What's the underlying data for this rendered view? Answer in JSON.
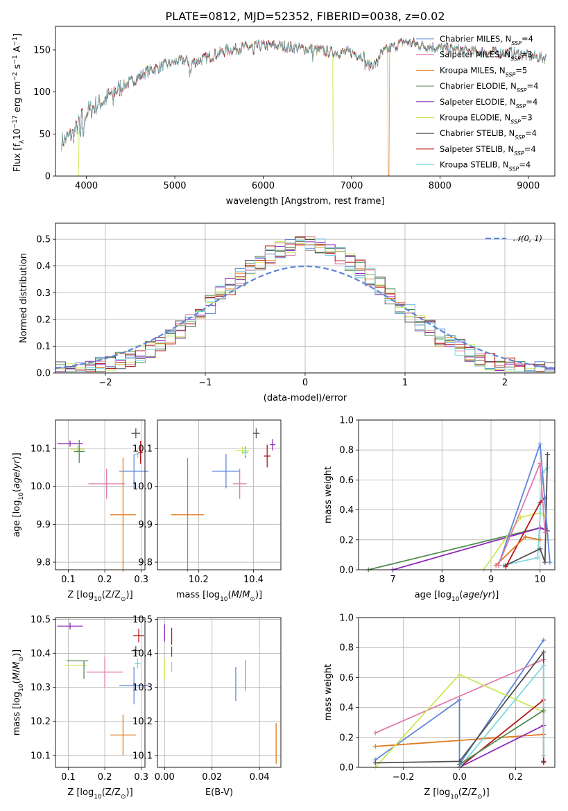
{
  "title": "PLATE=0812, MJD=52352, FIBERID=0038, z=0.02",
  "colors": {
    "blue": "#5b86d8",
    "pink": "#e07aac",
    "orange": "#e07b1f",
    "green": "#4f8a4f",
    "purple": "#8e2ab8",
    "yellow": "#cbe856",
    "gray": "#505050",
    "red": "#b31515",
    "cyan": "#7dd8e0",
    "grid": "#b0b0b0"
  },
  "chart_data": [
    {
      "type": "line",
      "xlabel": "wavelength [Angstrom, rest frame]",
      "ylabel": "Flux [f_λ 10^-17 erg cm^-2 s^-1 A^-1]",
      "xlim": [
        3650,
        9300
      ],
      "ylim": [
        0,
        178
      ],
      "xticks": [
        4000,
        5000,
        6000,
        7000,
        8000,
        9000
      ],
      "yticks": [
        0,
        50,
        100,
        150
      ],
      "legend": "top-right",
      "continuum": [
        [
          3700,
          40
        ],
        [
          3850,
          50
        ],
        [
          3950,
          70
        ],
        [
          4050,
          80
        ],
        [
          4200,
          90
        ],
        [
          4300,
          100
        ],
        [
          4500,
          112
        ],
        [
          4700,
          125
        ],
        [
          4900,
          132
        ],
        [
          5100,
          138
        ],
        [
          5200,
          135
        ],
        [
          5400,
          142
        ],
        [
          5600,
          150
        ],
        [
          5800,
          153
        ],
        [
          6000,
          155
        ],
        [
          6200,
          155
        ],
        [
          6400,
          152
        ],
        [
          6600,
          150
        ],
        [
          6800,
          147
        ],
        [
          7000,
          147
        ],
        [
          7200,
          140
        ],
        [
          7300,
          142
        ],
        [
          7400,
          150
        ],
        [
          7600,
          160
        ],
        [
          7800,
          155
        ],
        [
          8000,
          152
        ],
        [
          8200,
          150
        ],
        [
          8500,
          147
        ],
        [
          8800,
          147
        ],
        [
          9000,
          143
        ],
        [
          9200,
          140
        ]
      ],
      "series": [
        {
          "name": "Chabrier MILES",
          "nssp": "4",
          "color": "blue"
        },
        {
          "name": "Salpeter MILES",
          "nssp": "3",
          "color": "pink"
        },
        {
          "name": "Kroupa MILES",
          "nssp": "5",
          "color": "orange"
        },
        {
          "name": "Chabrier ELODIE",
          "nssp": "4",
          "color": "green"
        },
        {
          "name": "Salpeter ELODIE",
          "nssp": "4",
          "color": "purple"
        },
        {
          "name": "Kroupa ELODIE",
          "nssp": "3",
          "color": "yellow"
        },
        {
          "name": "Chabrier STELIB",
          "nssp": "4",
          "color": "gray"
        },
        {
          "name": "Salpeter STELIB",
          "nssp": "4",
          "color": "red"
        },
        {
          "name": "Kroupa STELIB",
          "nssp": "4",
          "color": "cyan"
        }
      ],
      "dropouts": [
        {
          "x": 3910,
          "color": "yellow"
        },
        {
          "x": 6790,
          "color": "yellow"
        },
        {
          "x": 7420,
          "color": "orange"
        }
      ]
    },
    {
      "type": "line",
      "xlabel": "(data-model)/error",
      "ylabel": "Normed distribution",
      "xlim": [
        -2.5,
        2.5
      ],
      "ylim": [
        0,
        0.56
      ],
      "xticks": [
        -2,
        -1,
        0,
        1,
        2
      ],
      "yticks": [
        0.0,
        0.1,
        0.2,
        0.3,
        0.4,
        0.5
      ],
      "grid": true,
      "legend": "top-right",
      "gaussian_label": "N(0,1)",
      "gaussian_color": "blue",
      "histogram_series": [
        "blue",
        "pink",
        "orange",
        "green",
        "purple",
        "yellow",
        "gray",
        "red",
        "cyan"
      ]
    },
    {
      "type": "scatter",
      "xlabel": "Z [log10(Z/Z⊙)]",
      "ylabel": "age [log10(age/yr)]",
      "xlim": [
        0.065,
        0.31
      ],
      "ylim": [
        9.78,
        10.175
      ],
      "xticks": [
        0.1,
        0.2,
        0.3
      ],
      "yticks": [
        9.8,
        9.9,
        10.0,
        10.1
      ],
      "grid": true,
      "points": [
        {
          "color": "purple",
          "x": 0.105,
          "y": 10.113,
          "xerr": 0.035,
          "yerr": 0.008
        },
        {
          "color": "yellow",
          "x": 0.125,
          "y": 10.098,
          "xerr": 0.02,
          "yerr": 0.01
        },
        {
          "color": "green",
          "x": 0.13,
          "y": 10.092,
          "xerr": 0.015,
          "yerr": 0.03
        },
        {
          "color": "gray",
          "x": 0.285,
          "y": 10.14,
          "xerr": 0.012,
          "yerr": 0.013
        },
        {
          "color": "cyan",
          "x": 0.29,
          "y": 10.085,
          "xerr": 0.008,
          "yerr": 0.01
        },
        {
          "color": "red",
          "x": 0.298,
          "y": 10.09,
          "xerr": 0.006,
          "yerr": 0.03
        },
        {
          "color": "blue",
          "x": 0.28,
          "y": 10.04,
          "xerr": 0.04,
          "yerr": 0.045
        },
        {
          "color": "pink",
          "x": 0.205,
          "y": 10.007,
          "xerr": 0.05,
          "yerr": 0.04
        },
        {
          "color": "orange",
          "x": 0.25,
          "y": 9.925,
          "xerr": 0.035,
          "yerr": 0.15
        }
      ]
    },
    {
      "type": "scatter",
      "xlabel": "mass [log10(M/M⊙)]",
      "ylabel": "",
      "xlim": [
        10.05,
        10.5
      ],
      "ylim": [
        9.78,
        10.175
      ],
      "xticks": [
        10.2,
        10.4
      ],
      "yticks": [
        9.8,
        9.9,
        10.0,
        10.1
      ],
      "grid": true,
      "points": [
        {
          "color": "gray",
          "x": 10.41,
          "y": 10.14,
          "xerr": 0.012,
          "yerr": 0.013
        },
        {
          "color": "red",
          "x": 10.45,
          "y": 10.08,
          "xerr": 0.012,
          "yerr": 0.03
        },
        {
          "color": "purple",
          "x": 10.47,
          "y": 10.11,
          "xerr": 0.01,
          "yerr": 0.015
        },
        {
          "color": "yellow",
          "x": 10.36,
          "y": 10.095,
          "xerr": 0.025,
          "yerr": 0.01
        },
        {
          "color": "green",
          "x": 10.37,
          "y": 10.09,
          "xerr": 0.01,
          "yerr": 0.015
        },
        {
          "color": "cyan",
          "x": 10.37,
          "y": 10.09,
          "xerr": 0.008,
          "yerr": 0.01
        },
        {
          "color": "blue",
          "x": 10.3,
          "y": 10.04,
          "xerr": 0.05,
          "yerr": 0.045
        },
        {
          "color": "pink",
          "x": 10.35,
          "y": 10.007,
          "xerr": 0.025,
          "yerr": 0.04
        },
        {
          "color": "orange",
          "x": 10.16,
          "y": 9.925,
          "xerr": 0.06,
          "yerr": 0.15
        }
      ]
    },
    {
      "type": "line",
      "xlabel": "age [log10(age/yr)]",
      "ylabel": "mass weight",
      "xlim": [
        6.3,
        10.3
      ],
      "ylim": [
        0,
        1
      ],
      "xticks": [
        7,
        8,
        9,
        10
      ],
      "yticks": [
        0.0,
        0.2,
        0.4,
        0.6,
        0.8,
        1.0
      ],
      "grid": true,
      "series": [
        {
          "color": "green",
          "points": [
            [
              6.5,
              0.0
            ],
            [
              10.0,
              0.28
            ],
            [
              10.1,
              0.27
            ]
          ]
        },
        {
          "color": "purple",
          "points": [
            [
              7.0,
              0.0
            ],
            [
              10.0,
              0.28
            ],
            [
              10.15,
              0.26
            ]
          ]
        },
        {
          "color": "yellow",
          "points": [
            [
              8.85,
              0.0
            ],
            [
              9.6,
              0.35
            ],
            [
              10.0,
              0.38
            ],
            [
              10.1,
              0.36
            ]
          ]
        },
        {
          "color": "cyan",
          "points": [
            [
              9.25,
              0.03
            ],
            [
              9.95,
              0.08
            ],
            [
              10.05,
              0.65
            ],
            [
              10.15,
              0.68
            ]
          ]
        },
        {
          "color": "gray",
          "points": [
            [
              9.3,
              0.03
            ],
            [
              10.0,
              0.14
            ],
            [
              10.1,
              0.05
            ],
            [
              10.15,
              0.77
            ]
          ]
        },
        {
          "color": "red",
          "points": [
            [
              9.3,
              0.02
            ],
            [
              10.0,
              0.45
            ],
            [
              10.1,
              0.48
            ]
          ]
        },
        {
          "color": "orange",
          "points": [
            [
              9.1,
              0.03
            ],
            [
              9.7,
              0.22
            ],
            [
              10.0,
              0.2
            ]
          ]
        },
        {
          "color": "blue",
          "points": [
            [
              9.15,
              0.03
            ],
            [
              10.0,
              0.84
            ],
            [
              10.2,
              0.05
            ]
          ]
        },
        {
          "color": "pink",
          "points": [
            [
              9.15,
              0.03
            ],
            [
              10.0,
              0.71
            ],
            [
              10.1,
              0.25
            ]
          ]
        }
      ]
    },
    {
      "type": "scatter",
      "xlabel": "Z [log10(Z/Z⊙)]",
      "ylabel": "mass [log10(M/M⊙)]",
      "xlim": [
        0.065,
        0.31
      ],
      "ylim": [
        10.065,
        10.505
      ],
      "xticks": [
        0.1,
        0.2,
        0.3
      ],
      "yticks": [
        10.1,
        10.2,
        10.3,
        10.4,
        10.5
      ],
      "grid": true,
      "points": [
        {
          "color": "purple",
          "x": 0.105,
          "y": 10.48,
          "xerr": 0.035,
          "yerr": 0.01
        },
        {
          "color": "green",
          "x": 0.125,
          "y": 10.378,
          "xerr": 0.03,
          "yerr": 0.0
        },
        {
          "color": "yellow",
          "x": 0.12,
          "y": 10.365,
          "xerr": 0.03,
          "yerr": 0.0
        },
        {
          "color": "green",
          "x": 0.143,
          "y": 10.352,
          "xerr": 0.0,
          "yerr": 0.027
        },
        {
          "color": "red",
          "x": 0.293,
          "y": 10.452,
          "xerr": 0.015,
          "yerr": 0.02
        },
        {
          "color": "gray",
          "x": 0.285,
          "y": 10.408,
          "xerr": 0.012,
          "yerr": 0.013
        },
        {
          "color": "cyan",
          "x": 0.29,
          "y": 10.37,
          "xerr": 0.008,
          "yerr": 0.015
        },
        {
          "color": "blue",
          "x": 0.28,
          "y": 10.305,
          "xerr": 0.04,
          "yerr": 0.055
        },
        {
          "color": "pink",
          "x": 0.2,
          "y": 10.345,
          "xerr": 0.05,
          "yerr": 0.045
        },
        {
          "color": "orange",
          "x": 0.25,
          "y": 10.16,
          "xerr": 0.035,
          "yerr": 0.06
        }
      ]
    },
    {
      "type": "scatter",
      "xlabel": "E(B-V)",
      "ylabel": "",
      "xlim": [
        -0.003,
        0.049
      ],
      "ylim": [
        10.065,
        10.505
      ],
      "xticks": [
        0.0,
        0.02,
        0.04
      ],
      "yticks": [
        10.1,
        10.2,
        10.3,
        10.4,
        10.5
      ],
      "grid": true,
      "points": [
        {
          "color": "purple",
          "x": 0.0,
          "y": 10.46,
          "xerr": 0.0,
          "yerr": 0.025
        },
        {
          "color": "yellow",
          "x": 0.0,
          "y": 10.355,
          "xerr": 0.0,
          "yerr": 0.03
        },
        {
          "color": "red",
          "x": 0.003,
          "y": 10.45,
          "xerr": 0.0,
          "yerr": 0.025
        },
        {
          "color": "gray",
          "x": 0.003,
          "y": 10.405,
          "xerr": 0.0,
          "yerr": 0.015
        },
        {
          "color": "cyan",
          "x": 0.003,
          "y": 10.36,
          "xerr": 0.0,
          "yerr": 0.015
        },
        {
          "color": "blue",
          "x": 0.03,
          "y": 10.31,
          "xerr": 0.0,
          "yerr": 0.05
        },
        {
          "color": "pink",
          "x": 0.034,
          "y": 10.335,
          "xerr": 0.0,
          "yerr": 0.045
        },
        {
          "color": "orange",
          "x": 0.047,
          "y": 10.135,
          "xerr": 0.0,
          "yerr": 0.06
        }
      ]
    },
    {
      "type": "line",
      "xlabel": "Z [log10(Z/Z⊙)]",
      "ylabel": "mass weight",
      "xlim": [
        -0.36,
        0.34
      ],
      "ylim": [
        0,
        1
      ],
      "xticks": [
        -0.2,
        0.0,
        0.2
      ],
      "yticks": [
        0.0,
        0.2,
        0.4,
        0.6,
        0.8,
        1.0
      ],
      "grid": true,
      "series": [
        {
          "color": "blue",
          "points": [
            [
              -0.3,
              0.05
            ],
            [
              0.0,
              0.45
            ],
            [
              0.0,
              0.02
            ],
            [
              0.3,
              0.85
            ]
          ]
        },
        {
          "color": "pink",
          "points": [
            [
              -0.3,
              0.23
            ],
            [
              0.3,
              0.72
            ]
          ]
        },
        {
          "color": "orange",
          "points": [
            [
              -0.3,
              0.14
            ],
            [
              0.3,
              0.22
            ]
          ]
        },
        {
          "color": "yellow",
          "points": [
            [
              -0.3,
              0.0
            ],
            [
              0.0,
              0.62
            ],
            [
              0.3,
              0.37
            ]
          ]
        },
        {
          "color": "gray",
          "points": [
            [
              -0.3,
              0.03
            ],
            [
              0.0,
              0.04
            ],
            [
              0.3,
              0.77
            ],
            [
              0.3,
              0.04
            ]
          ]
        },
        {
          "color": "red",
          "points": [
            [
              0.0,
              0.0
            ],
            [
              0.3,
              0.45
            ],
            [
              0.3,
              0.03
            ]
          ]
        },
        {
          "color": "purple",
          "points": [
            [
              0.0,
              0.0
            ],
            [
              0.3,
              0.28
            ]
          ]
        },
        {
          "color": "cyan",
          "points": [
            [
              0.0,
              0.0
            ],
            [
              0.3,
              0.68
            ],
            [
              0.3,
              0.08
            ]
          ]
        },
        {
          "color": "green",
          "points": [
            [
              0.0,
              0.02
            ],
            [
              0.3,
              0.38
            ]
          ]
        }
      ]
    }
  ]
}
